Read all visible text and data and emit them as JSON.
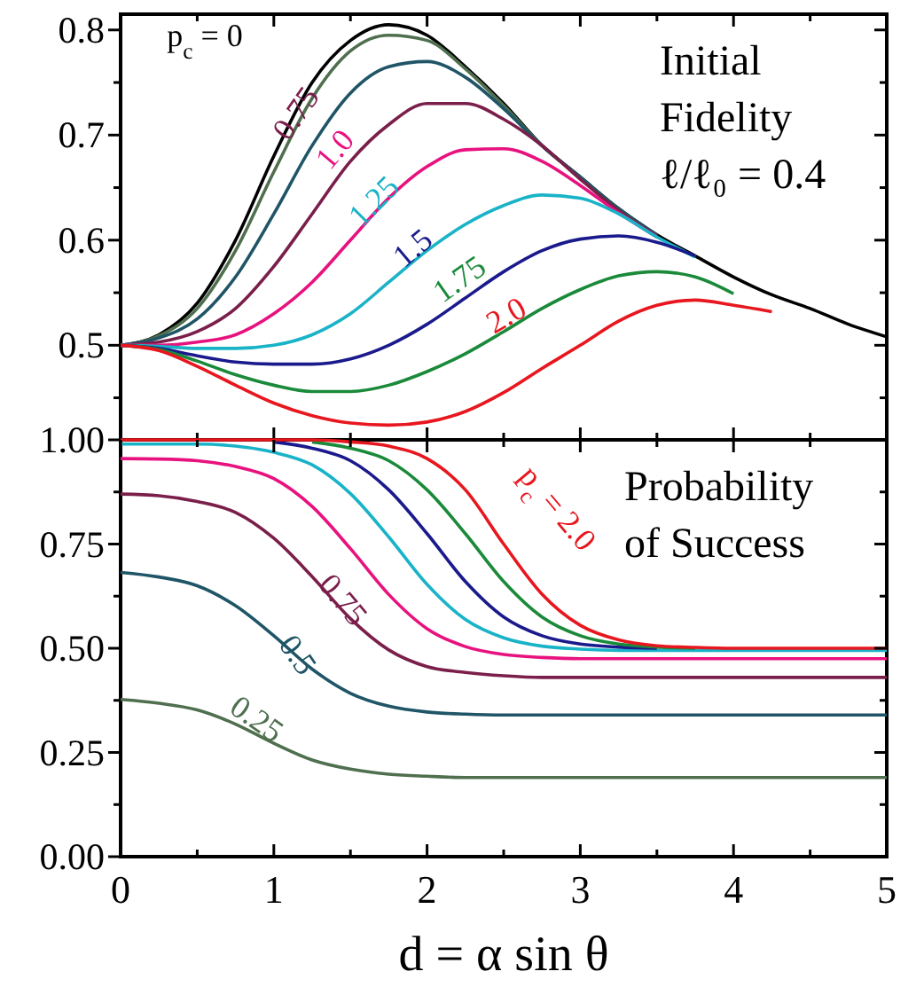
{
  "chart_data": [
    {
      "type": "line",
      "annotations": [
        "Initial",
        "Fidelity",
        "ℓ/ℓ₀ = 0.4"
      ],
      "x": [
        0,
        0.25,
        0.5,
        0.75,
        1,
        1.25,
        1.5,
        1.75,
        2,
        2.25,
        2.5,
        2.75,
        3,
        3.25,
        3.5,
        3.75,
        4,
        4.25,
        4.5,
        4.75,
        5
      ],
      "xlim": [
        0,
        5
      ],
      "xticks": [
        0,
        {
          "value": 0.5,
          "label": null
        },
        1,
        {
          "value": 1.5,
          "label": null
        },
        2,
        {
          "value": 2.5,
          "label": null
        },
        3,
        {
          "value": 3.5,
          "label": null
        },
        4,
        {
          "value": 4.5,
          "label": null
        },
        5
      ],
      "ylim": [
        0.41,
        0.815
      ],
      "yticks": [
        {
          "value": 0.45,
          "label": null
        },
        0.5,
        {
          "value": 0.55,
          "label": null
        },
        0.6,
        {
          "value": 0.65,
          "label": null
        },
        0.7,
        {
          "value": 0.75,
          "label": null
        },
        0.8
      ],
      "tick_labels": "y",
      "series": [
        {
          "name": "p$_{c}$ = 0",
          "color": "#000000",
          "values": [
            0.5,
            0.51,
            0.54,
            0.6,
            0.68,
            0.75,
            0.79,
            0.805,
            0.795,
            0.765,
            0.73,
            0.69,
            0.66,
            0.63,
            0.605,
            0.585,
            0.565,
            0.548,
            0.535,
            0.52,
            0.508
          ]
        },
        {
          "color": "#4f6f4f",
          "values": [
            0.5,
            0.509,
            0.535,
            0.59,
            0.665,
            0.735,
            0.78,
            0.795,
            0.79,
            0.763,
            0.728,
            0.69,
            0.66,
            0.63,
            0.605,
            null,
            null,
            null,
            null,
            null,
            null
          ]
        },
        {
          "color": "#1f5566",
          "values": [
            0.5,
            0.507,
            0.525,
            0.565,
            0.625,
            0.69,
            0.74,
            0.765,
            0.77,
            0.755,
            0.725,
            0.69,
            0.66,
            0.63,
            0.605,
            null,
            null,
            null,
            null,
            null,
            null
          ]
        },
        {
          "name": "0.75",
          "color": "#7a1f4a",
          "values": [
            0.5,
            0.503,
            0.513,
            0.535,
            0.575,
            0.625,
            0.675,
            0.71,
            0.73,
            0.73,
            0.715,
            0.69,
            0.658,
            0.628,
            0.604,
            null,
            null,
            null,
            null,
            null,
            null
          ]
        },
        {
          "name": "1.0",
          "color": "#e8127f",
          "values": [
            0.5,
            0.5,
            0.503,
            0.51,
            0.53,
            0.56,
            0.6,
            0.64,
            0.67,
            0.686,
            0.687,
            0.675,
            0.652,
            0.626,
            0.603,
            null,
            null,
            null,
            null,
            null,
            null
          ]
        },
        {
          "name": "1.25",
          "color": "#19b3c8",
          "values": [
            0.5,
            0.499,
            0.497,
            0.497,
            0.5,
            0.51,
            0.53,
            0.56,
            0.59,
            0.615,
            0.633,
            0.643,
            0.64,
            0.625,
            0.603,
            0.584,
            null,
            null,
            null,
            null,
            null
          ]
        },
        {
          "name": "1.5",
          "color": "#1a1a8c",
          "values": [
            0.5,
            0.497,
            0.49,
            0.484,
            0.482,
            0.482,
            0.487,
            0.5,
            0.52,
            0.545,
            0.57,
            0.59,
            0.601,
            0.604,
            0.598,
            0.585,
            null,
            null,
            null,
            null,
            null
          ]
        },
        {
          "name": "1.75",
          "color": "#1a8a3a",
          "values": [
            0.5,
            0.496,
            0.485,
            0.472,
            0.462,
            0.456,
            0.456,
            0.462,
            0.475,
            0.492,
            0.513,
            0.535,
            0.553,
            0.566,
            0.57,
            0.565,
            0.549,
            null,
            null,
            null,
            null
          ]
        },
        {
          "name": "2.0",
          "color": "#e8161e",
          "values": [
            0.5,
            0.495,
            0.48,
            0.462,
            0.445,
            0.433,
            0.426,
            0.424,
            0.427,
            0.437,
            0.455,
            0.478,
            0.5,
            0.523,
            0.538,
            0.543,
            0.538,
            0.532,
            null,
            null,
            null
          ]
        }
      ]
    },
    {
      "type": "line",
      "xlabel": "d = α sin θ",
      "annotations": [
        "Probability",
        "of Success"
      ],
      "x": [
        0,
        0.25,
        0.5,
        0.75,
        1,
        1.25,
        1.5,
        1.75,
        2,
        2.25,
        2.5,
        2.75,
        3,
        3.25,
        3.5,
        3.75,
        4,
        4.25,
        4.5,
        4.75,
        5
      ],
      "xlim": [
        0,
        5
      ],
      "xticks": [
        0,
        {
          "value": 0.5,
          "label": null
        },
        1,
        {
          "value": 1.5,
          "label": null
        },
        2,
        {
          "value": 2.5,
          "label": null
        },
        3,
        {
          "value": 3.5,
          "label": null
        },
        4,
        {
          "value": 4.5,
          "label": null
        },
        5
      ],
      "ylim": [
        0,
        1
      ],
      "yticks": [
        {
          "value": 0,
          "label": "0.00"
        },
        {
          "value": 0.125,
          "label": null
        },
        {
          "value": 0.25,
          "label": "0.25"
        },
        {
          "value": 0.375,
          "label": null
        },
        {
          "value": 0.5,
          "label": "0.50"
        },
        {
          "value": 0.625,
          "label": null
        },
        {
          "value": 0.75,
          "label": "0.75"
        },
        {
          "value": 0.875,
          "label": null
        },
        {
          "value": 1,
          "label": "1.00"
        }
      ],
      "series": [
        {
          "name": "0.25",
          "color": "#4f6f4f",
          "values": [
            0.377,
            0.368,
            0.352,
            0.318,
            0.272,
            0.232,
            0.21,
            0.198,
            0.193,
            0.19,
            0.19,
            0.19,
            0.19,
            0.19,
            0.19,
            0.19,
            0.19,
            0.19,
            0.19,
            0.19,
            0.19
          ]
        },
        {
          "name": "0.5",
          "color": "#1f5566",
          "values": [
            0.682,
            0.671,
            0.65,
            0.602,
            0.53,
            0.45,
            0.392,
            0.361,
            0.347,
            0.342,
            0.34,
            0.34,
            0.34,
            0.34,
            0.34,
            0.34,
            0.34,
            0.34,
            0.34,
            0.34,
            0.34
          ]
        },
        {
          "name": "0.75",
          "color": "#7a1f4a",
          "values": [
            0.87,
            0.866,
            0.852,
            0.826,
            0.764,
            0.672,
            0.571,
            0.496,
            0.456,
            0.442,
            0.434,
            0.43,
            0.43,
            0.43,
            0.43,
            0.43,
            0.43,
            0.43,
            0.43,
            0.43,
            0.43
          ]
        },
        {
          "color": "#e8127f",
          "values": [
            0.955,
            0.954,
            0.95,
            0.936,
            0.907,
            0.84,
            0.739,
            0.629,
            0.547,
            0.504,
            0.485,
            0.478,
            0.475,
            0.475,
            0.475,
            0.475,
            0.475,
            0.475,
            0.475,
            0.475,
            0.475
          ]
        },
        {
          "color": "#19b3c8",
          "values": [
            0.99,
            0.99,
            0.99,
            0.985,
            0.97,
            0.94,
            0.871,
            0.767,
            0.653,
            0.569,
            0.525,
            0.505,
            0.498,
            0.495,
            0.495,
            0.495,
            0.495,
            0.495,
            0.495,
            0.495,
            0.495
          ]
        },
        {
          "color": "#1a1a8c",
          "values": [
            null,
            null,
            null,
            null,
            0.995,
            0.98,
            0.95,
            0.88,
            0.775,
            0.66,
            0.575,
            0.53,
            0.51,
            0.503,
            0.5,
            null,
            null,
            null,
            null,
            null,
            null
          ]
        },
        {
          "color": "#1a8a3a",
          "values": [
            null,
            null,
            null,
            null,
            null,
            0.995,
            0.98,
            0.95,
            0.88,
            0.775,
            0.66,
            0.575,
            0.53,
            0.51,
            0.503,
            0.5,
            null,
            null,
            null,
            null,
            null
          ]
        },
        {
          "name": "p$_{c}$ = 2.0",
          "color": "#e8161e",
          "values": [
            1,
            1,
            1,
            1,
            1,
            1,
            0.995,
            0.985,
            0.955,
            0.88,
            0.75,
            0.63,
            0.555,
            0.52,
            0.506,
            0.502,
            0.5,
            0.5,
            0.5,
            0.5,
            0.5
          ]
        }
      ]
    }
  ]
}
